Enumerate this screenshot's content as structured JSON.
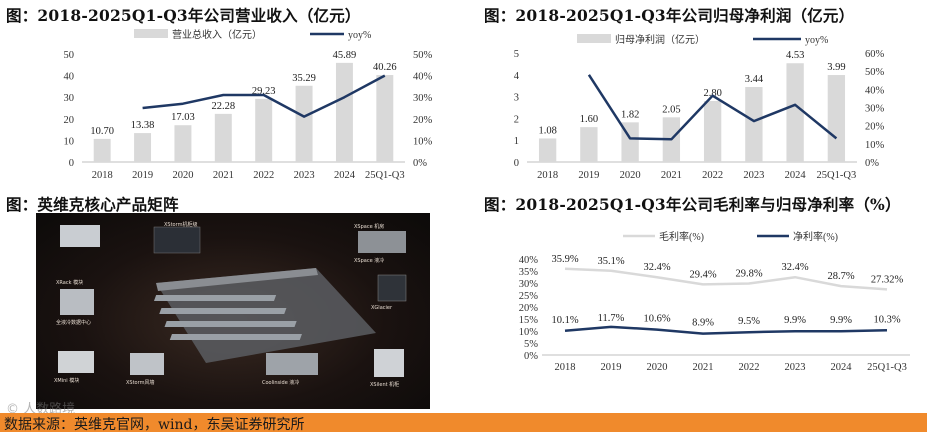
{
  "charts": {
    "revenue": {
      "title": "图：2018-2025Q1-Q3年公司营业收入（亿元）",
      "legend_bar": "营业总收入（亿元）",
      "legend_line": "yoy%"
    },
    "profit": {
      "title": "图：2018-2025Q1-Q3年公司归母净利润（亿元）",
      "legend_bar": "归母净利润（亿元）",
      "legend_line": "yoy%"
    },
    "matrix": {
      "title": "图：英维克核心产品矩阵",
      "labels": [
        "XStorm机柜级",
        "XSpace 机房",
        "XSpace 液冷",
        "XGlacier",
        "XRack 模块",
        "Coolinside 液冷",
        "XStorm风墙",
        "XMini 模块",
        "XSilent 机柜",
        "全液冷数据中心"
      ]
    },
    "margin": {
      "title": "图：2018-2025Q1-Q3年公司毛利率与归母净利率（%）",
      "legend_gross": "毛利率(%)",
      "legend_net": "净利率(%)"
    }
  },
  "footer": {
    "source": "数据来源：英维克官网，wind，东吴证券研究所",
    "watermark": "© 人数路境"
  },
  "colors": {
    "bar": "#d9d9d9",
    "line": "#1f3864",
    "gross_line": "#d9d9d9",
    "footer": "#f08a2c"
  },
  "chart_data": [
    {
      "type": "bar",
      "id": "revenue",
      "categories": [
        "2018",
        "2019",
        "2020",
        "2021",
        "2022",
        "2023",
        "2024",
        "25Q1-Q3"
      ],
      "series": [
        {
          "name": "营业总收入（亿元）",
          "type": "bar",
          "axis": "left",
          "values": [
            10.7,
            13.38,
            17.03,
            22.28,
            29.23,
            35.29,
            45.89,
            40.26
          ],
          "labels": [
            "10.70",
            "13.38",
            "17.03",
            "22.28",
            "29.23",
            "35.29",
            "45.89",
            "40.26"
          ]
        },
        {
          "name": "yoy%",
          "type": "line",
          "axis": "right",
          "values": [
            null,
            25,
            27,
            31,
            31,
            21,
            30,
            40
          ]
        }
      ],
      "ylim_left": [
        0,
        50
      ],
      "yticks_left": [
        0,
        10,
        20,
        30,
        40,
        50
      ],
      "ylim_right": [
        0,
        50
      ],
      "yticks_right": [
        "0%",
        "10%",
        "20%",
        "30%",
        "40%",
        "50%"
      ]
    },
    {
      "type": "bar",
      "id": "profit",
      "categories": [
        "2018",
        "2019",
        "2020",
        "2021",
        "2022",
        "2023",
        "2024",
        "25Q1-Q3"
      ],
      "series": [
        {
          "name": "归母净利润（亿元）",
          "type": "bar",
          "axis": "left",
          "values": [
            1.08,
            1.6,
            1.82,
            2.05,
            2.8,
            3.44,
            4.53,
            3.99
          ],
          "labels": [
            "1.08",
            "1.60",
            "1.82",
            "2.05",
            "2.80",
            "3.44",
            "4.53",
            "3.99"
          ]
        },
        {
          "name": "yoy%",
          "type": "line",
          "axis": "right",
          "values": [
            null,
            48,
            13,
            12.5,
            36.5,
            22.5,
            31.5,
            13
          ]
        }
      ],
      "ylim_left": [
        0,
        5
      ],
      "yticks_left": [
        0,
        1,
        2,
        3,
        4,
        5
      ],
      "ylim_right": [
        0,
        60
      ],
      "yticks_right": [
        "0%",
        "10%",
        "20%",
        "30%",
        "40%",
        "50%",
        "60%"
      ]
    },
    {
      "type": "line",
      "id": "margin",
      "categories": [
        "2018",
        "2019",
        "2020",
        "2021",
        "2022",
        "2023",
        "2024",
        "25Q1-Q3"
      ],
      "series": [
        {
          "name": "毛利率(%)",
          "values": [
            35.9,
            35.1,
            32.4,
            29.4,
            29.8,
            32.4,
            28.7,
            27.32
          ],
          "labels": [
            "35.9%",
            "35.1%",
            "32.4%",
            "29.4%",
            "29.8%",
            "32.4%",
            "28.7%",
            "27.32%"
          ]
        },
        {
          "name": "净利率(%)",
          "values": [
            10.1,
            11.7,
            10.6,
            8.9,
            9.5,
            9.9,
            9.9,
            10.3
          ],
          "labels": [
            "10.1%",
            "11.7%",
            "10.6%",
            "8.9%",
            "9.5%",
            "9.9%",
            "9.9%",
            "10.3%"
          ]
        }
      ],
      "ylim": [
        0,
        40
      ],
      "yticks": [
        "0%",
        "5%",
        "10%",
        "15%",
        "20%",
        "25%",
        "30%",
        "35%",
        "40%"
      ]
    }
  ]
}
